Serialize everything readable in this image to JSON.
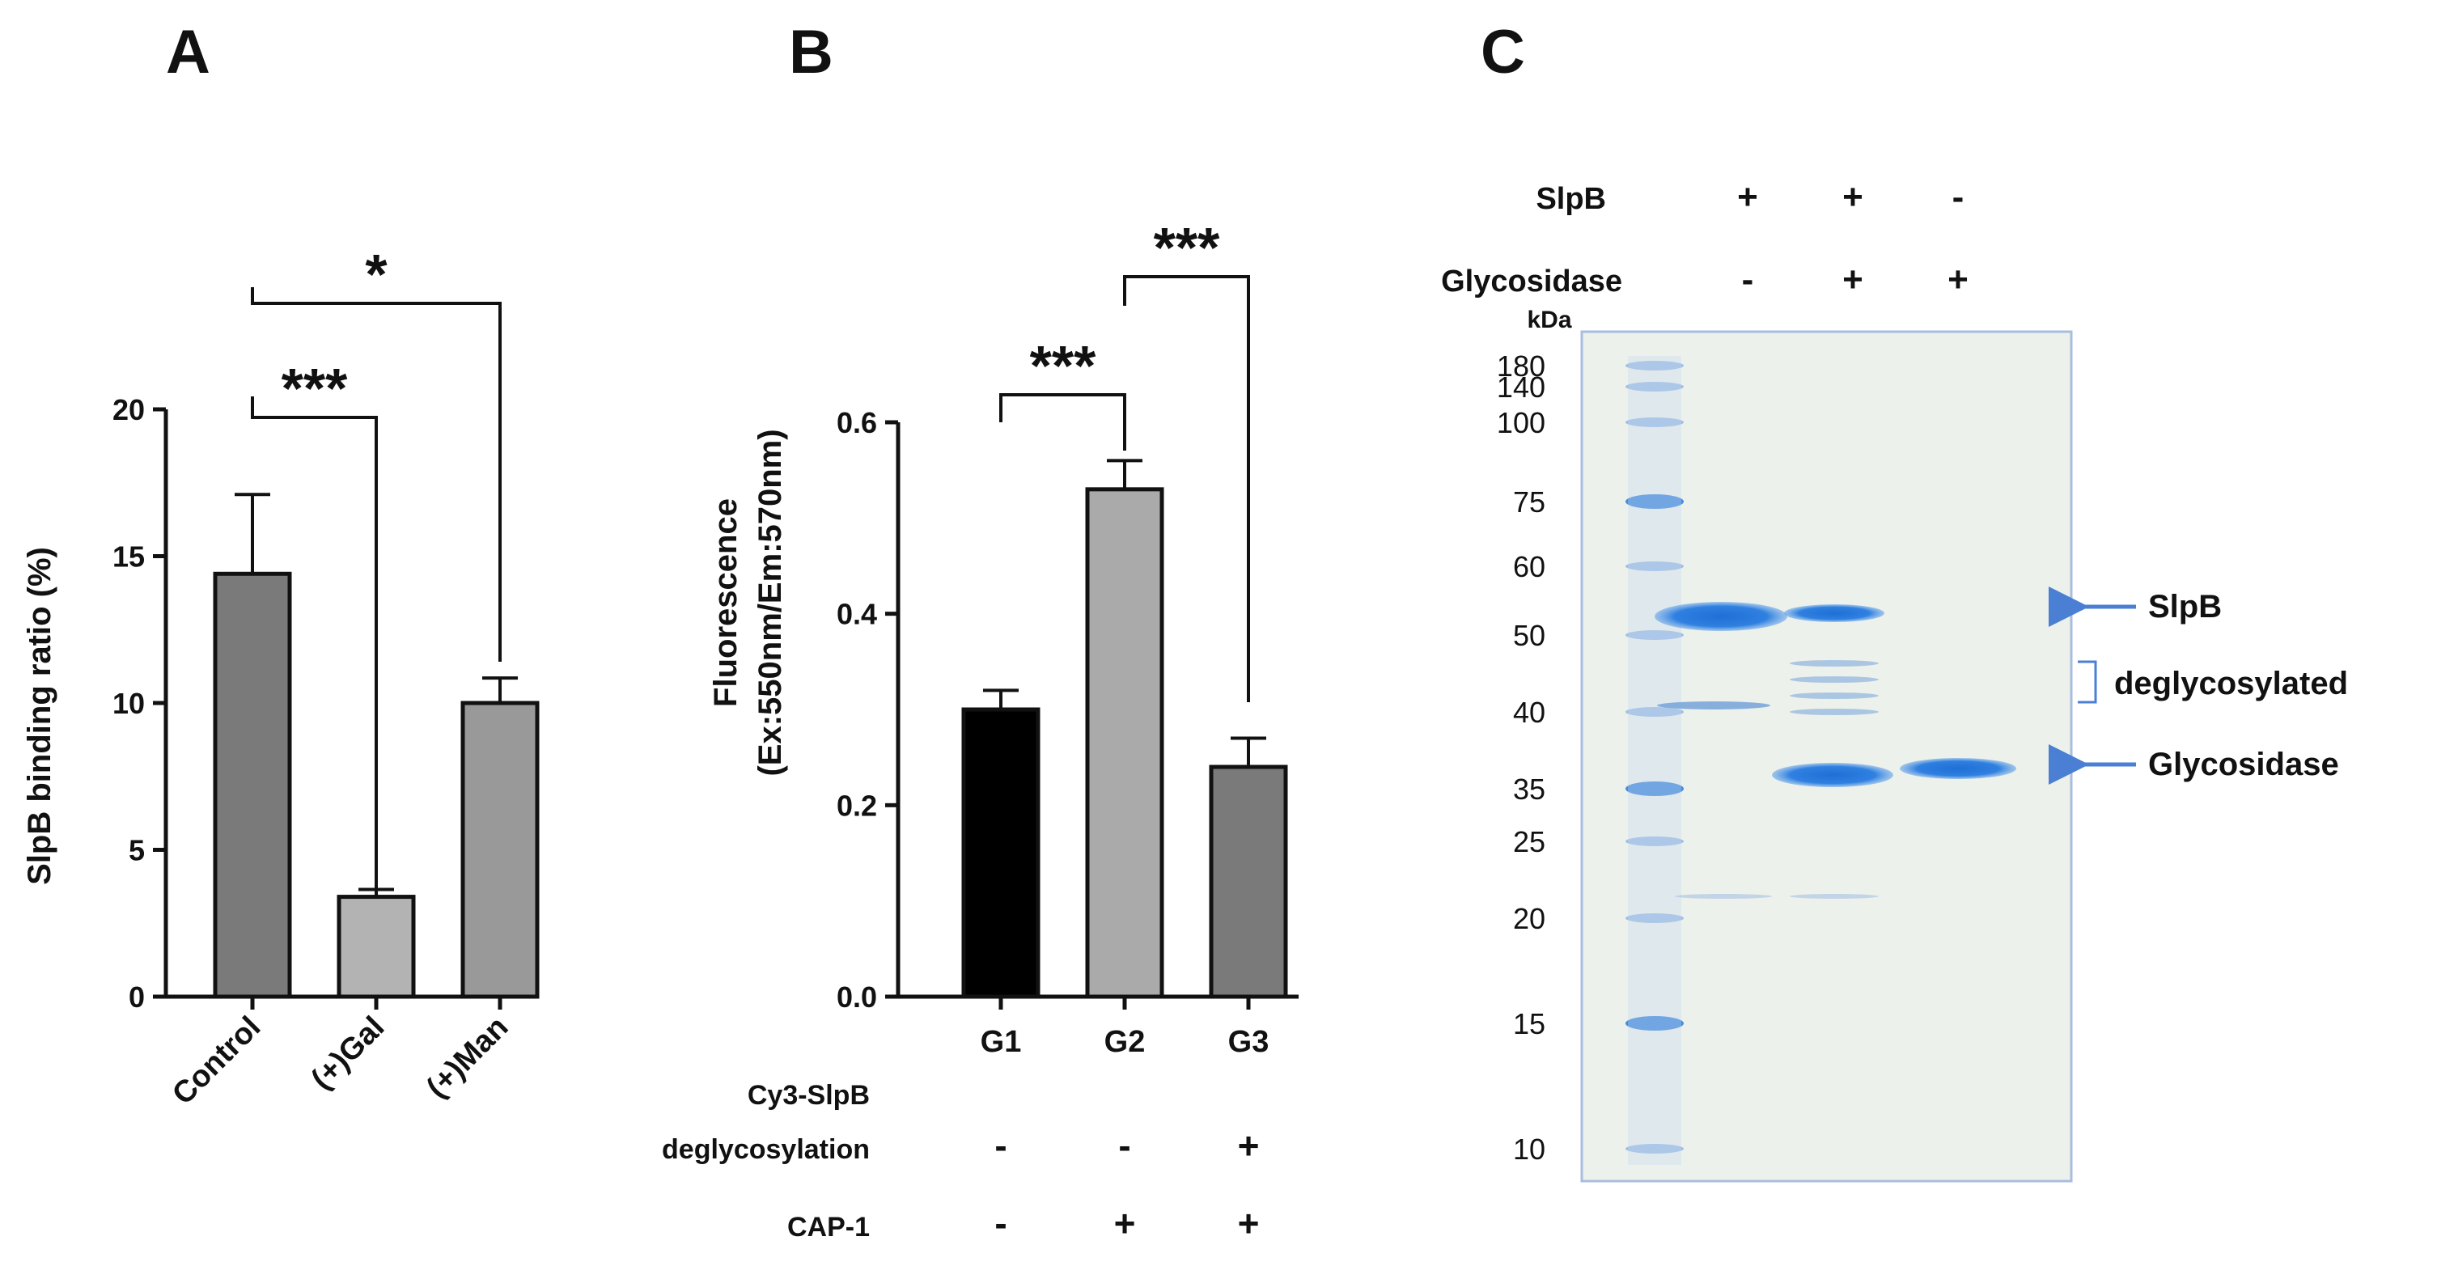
{
  "panels": {
    "a": "A",
    "b": "B",
    "c": "C"
  },
  "chart_data": [
    {
      "type": "bar",
      "ylabel": "SlpB binding ratio (%)",
      "ylim": [
        0,
        20
      ],
      "yticks": [
        "0",
        "5",
        "10",
        "15",
        "20"
      ],
      "categories": [
        "Control",
        "(+)Gal",
        "(+)Man"
      ],
      "values": [
        14.4,
        3.4,
        10.0
      ],
      "errors": [
        2.7,
        0.25,
        0.85
      ],
      "bar_colors": [
        "#7a7a7a",
        "#b3b3b3",
        "#999999"
      ],
      "significance": [
        {
          "label": "***",
          "from": "Control",
          "to": "(+)Gal"
        },
        {
          "label": "*",
          "from": "Control",
          "to": "(+)Man"
        }
      ]
    },
    {
      "type": "bar",
      "ylabel_line1": "Fluorescence",
      "ylabel_line2": "(Ex:550nm/Em:570nm)",
      "ylim": [
        0,
        0.6
      ],
      "yticks": [
        "0.0",
        "0.2",
        "0.4",
        "0.6"
      ],
      "categories": [
        "G1",
        "G2",
        "G3"
      ],
      "values": [
        0.3,
        0.53,
        0.24
      ],
      "errors": [
        0.02,
        0.03,
        0.03
      ],
      "bar_colors": [
        "#000000",
        "#aaaaaa",
        "#7a7a7a"
      ],
      "significance": [
        {
          "label": "***",
          "from": "G1",
          "to": "G2"
        },
        {
          "label": "***",
          "from": "G2",
          "to": "G3"
        }
      ],
      "conditions": [
        {
          "label_line1": "Cy3-SlpB",
          "label_line2": "deglycosylation",
          "signs": [
            "-",
            "-",
            "+"
          ]
        },
        {
          "label": "CAP-1",
          "signs": [
            "-",
            "+",
            "+"
          ]
        }
      ]
    }
  ],
  "gel": {
    "row_labels": [
      "SlpB",
      "Glycosidase"
    ],
    "lane_signs": [
      [
        "+",
        "+",
        "-"
      ],
      [
        "-",
        "+",
        "+"
      ]
    ],
    "kda_label": "kDa",
    "markers": [
      "180",
      "140",
      "100",
      "75",
      "60",
      "50",
      "40",
      "35",
      "25",
      "20",
      "15",
      "10"
    ],
    "annotations": {
      "slpb": "SlpB",
      "deglycosylated": "deglycosylated",
      "glycosidase": "Glycosidase"
    }
  }
}
